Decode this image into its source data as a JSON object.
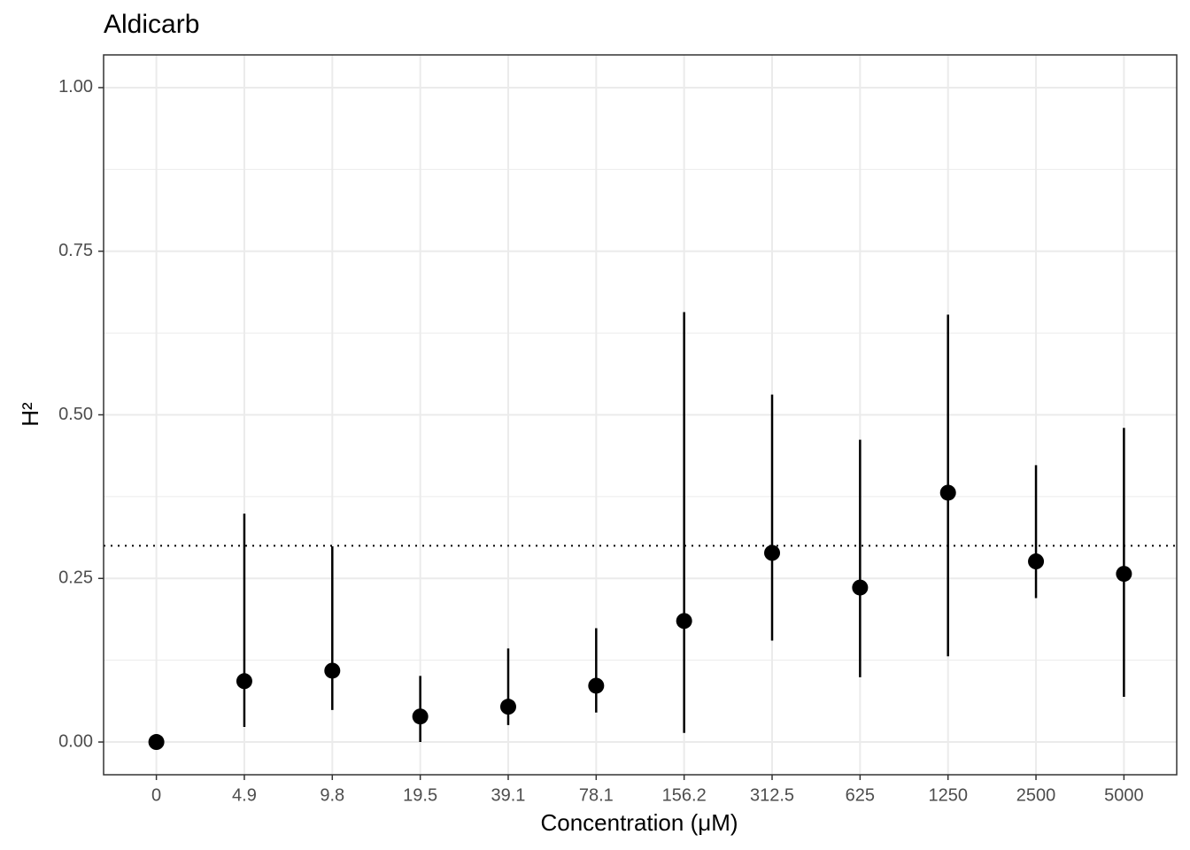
{
  "chart_data": {
    "type": "pointrange",
    "title": "Aldicarb",
    "x_label": "Concentration (μM)",
    "y_label": "H²",
    "categories": [
      "0",
      "4.9",
      "9.8",
      "19.5",
      "39.1",
      "78.1",
      "156.2",
      "312.5",
      "625",
      "1250",
      "2500",
      "5000"
    ],
    "values": [
      0,
      0.093,
      0.109,
      0.039,
      0.054,
      0.086,
      0.185,
      0.289,
      0.236,
      0.381,
      0.276,
      0.257
    ],
    "lower": [
      0,
      0.023,
      0.049,
      0.0,
      0.026,
      0.045,
      0.014,
      0.155,
      0.099,
      0.131,
      0.22,
      0.069
    ],
    "upper": [
      0,
      0.349,
      0.299,
      0.101,
      0.143,
      0.174,
      0.657,
      0.531,
      0.462,
      0.653,
      0.423,
      0.48
    ],
    "color": "#000000",
    "hline": 0.3,
    "ylim": [
      -0.05,
      1.05
    ],
    "yticks": [
      {
        "value": 0,
        "label": "0.00"
      },
      {
        "value": 0.25,
        "label": "0.25"
      },
      {
        "value": 0.5,
        "label": "0.50"
      },
      {
        "value": 0.75,
        "label": "0.75"
      },
      {
        "value": 1,
        "label": "1.00"
      }
    ],
    "grid": true
  }
}
